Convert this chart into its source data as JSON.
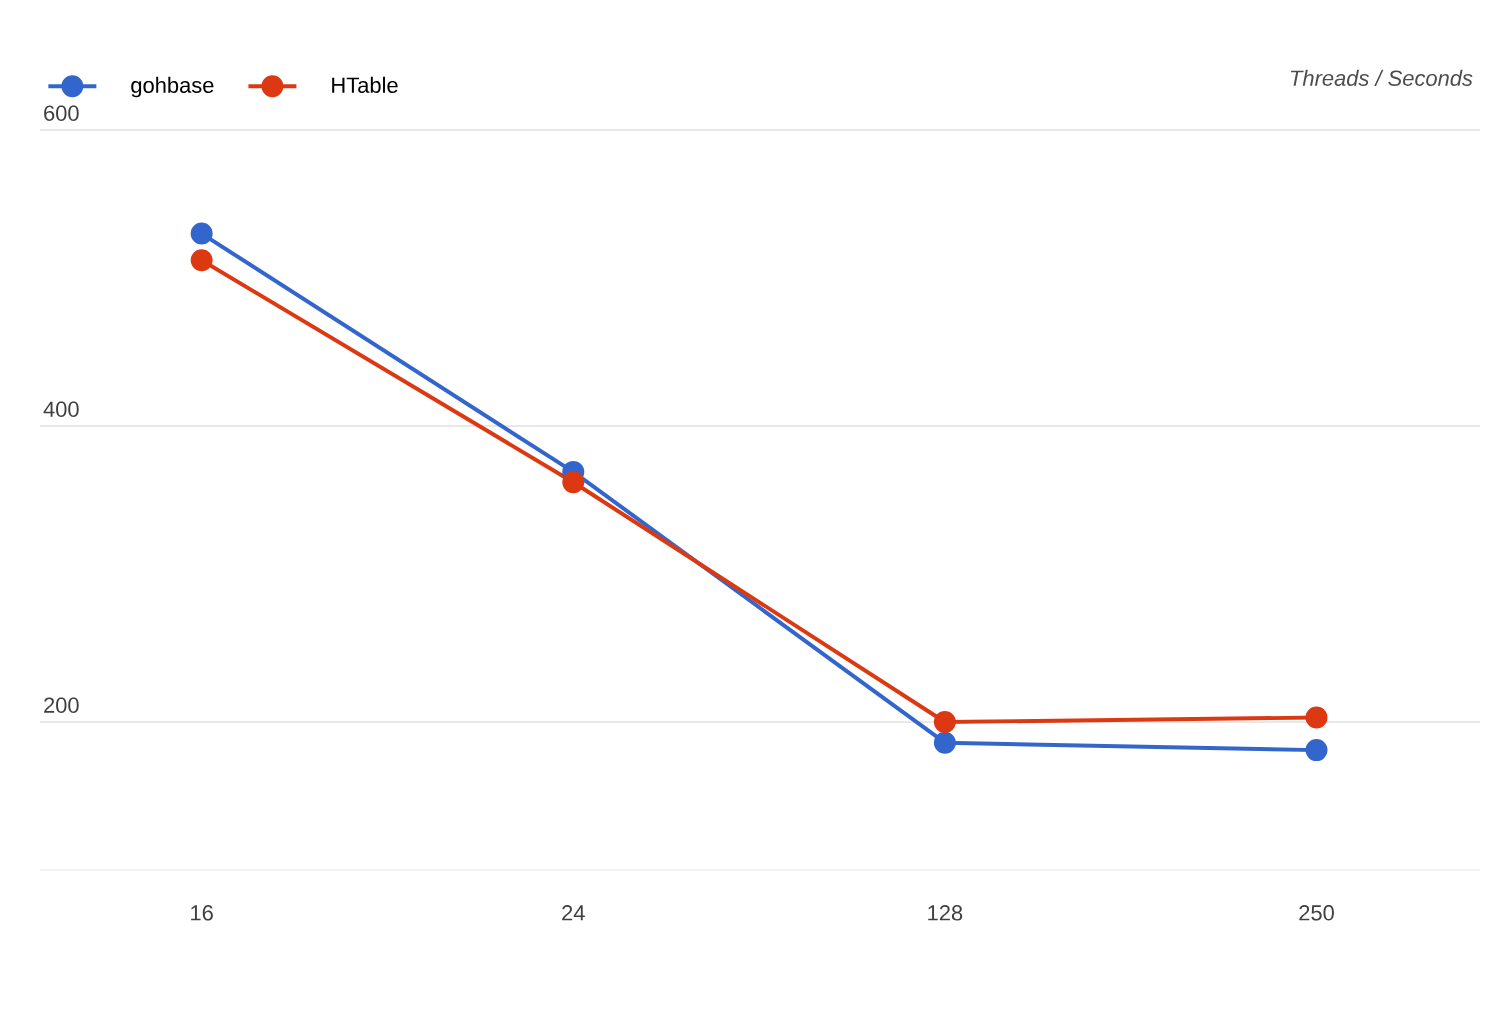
{
  "chart_data": {
    "type": "line",
    "annotations": [
      "Threads / Seconds"
    ],
    "categories": [
      "16",
      "24",
      "128",
      "250"
    ],
    "series": [
      {
        "name": "gohbase",
        "color": "#3366cc",
        "values": [
          530,
          369,
          186,
          181
        ]
      },
      {
        "name": "HTable",
        "color": "#dc3912",
        "values": [
          512,
          362,
          200,
          203
        ]
      }
    ],
    "ylim": [
      100,
      600
    ],
    "yticks": [
      200,
      400,
      600
    ],
    "grid": "y",
    "legend": "top left",
    "marker": "circle",
    "line_style": "solid"
  }
}
